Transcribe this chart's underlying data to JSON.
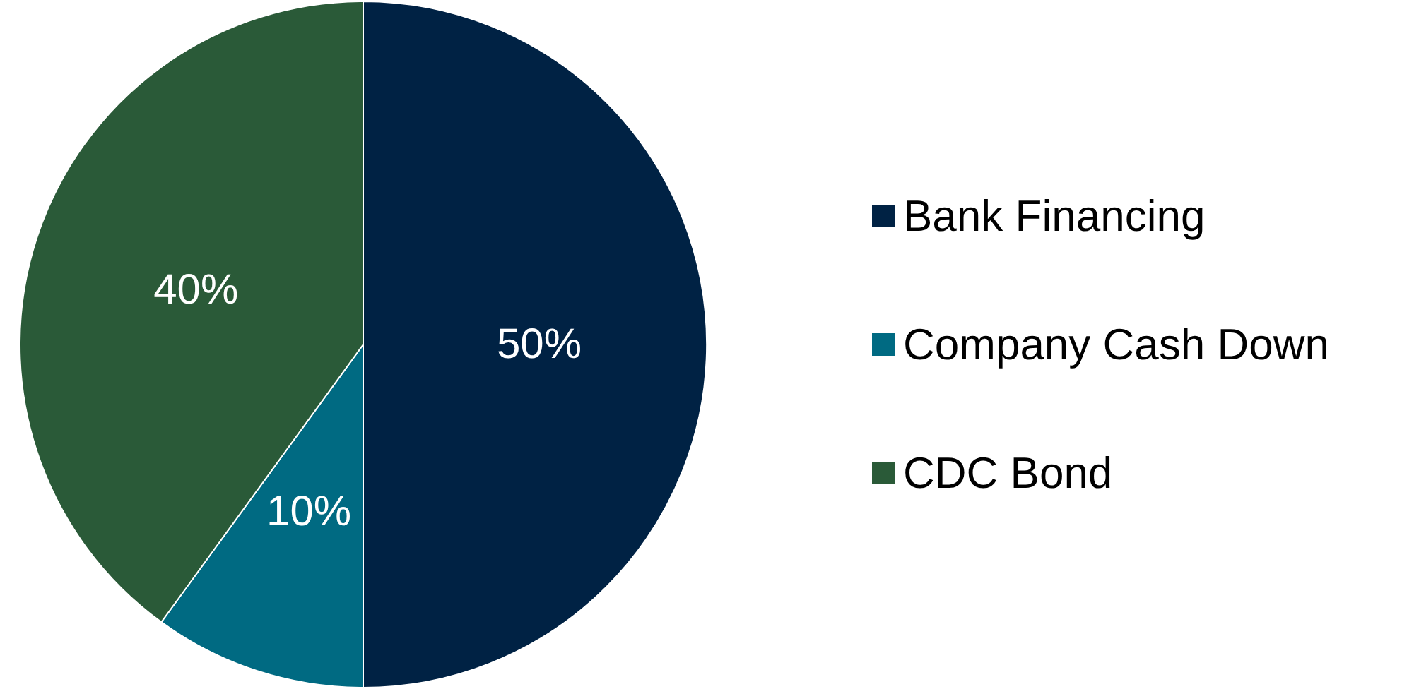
{
  "chart_data": {
    "type": "pie",
    "categories": [
      "Bank Financing",
      "Company Cash Down",
      "CDC Bond"
    ],
    "values": [
      50,
      10,
      40
    ],
    "colors": [
      "#002244",
      "#006a82",
      "#2a5a38"
    ],
    "value_labels": [
      "50%",
      "10%",
      "40%"
    ],
    "legend": "right"
  }
}
